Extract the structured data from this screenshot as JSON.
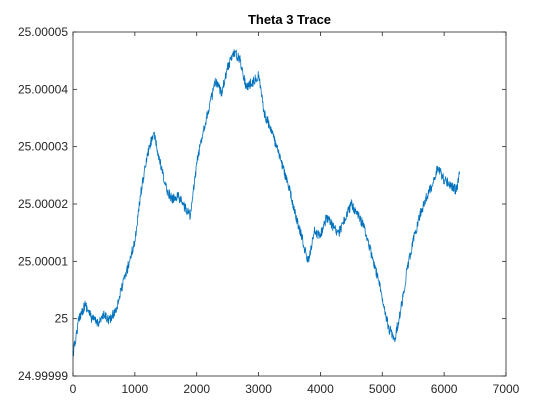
{
  "chart_data": {
    "type": "line",
    "title": "Theta 3 Trace",
    "xlabel": "",
    "ylabel": "",
    "xlim": [
      0,
      7000
    ],
    "ylim": [
      24.99999,
      25.00005
    ],
    "x_ticks": [
      0,
      1000,
      2000,
      3000,
      4000,
      5000,
      6000,
      7000
    ],
    "x_tick_labels": [
      "0",
      "1000",
      "2000",
      "3000",
      "4000",
      "5000",
      "6000",
      "7000"
    ],
    "y_ticks": [
      24.99999,
      25.0,
      25.00001,
      25.00002,
      25.00003,
      25.00004,
      25.00005
    ],
    "y_tick_labels": [
      "24.99999",
      "25",
      "25.00001",
      "25.00002",
      "25.00003",
      "25.00004",
      "25.00005"
    ],
    "grid": false,
    "colors": {
      "series": "#0072BD",
      "axis": "#262626"
    },
    "series": [
      {
        "x": [
          0,
          100,
          200,
          300,
          400,
          500,
          600,
          700,
          800,
          900,
          1000,
          1100,
          1200,
          1300,
          1400,
          1500,
          1600,
          1700,
          1800,
          1900,
          2000,
          2100,
          2200,
          2300,
          2400,
          2500,
          2600,
          2700,
          2800,
          2900,
          3000,
          3100,
          3200,
          3300,
          3400,
          3500,
          3600,
          3700,
          3800,
          3900,
          4000,
          4100,
          4200,
          4300,
          4400,
          4500,
          4600,
          4700,
          4800,
          4900,
          5000,
          5100,
          5200,
          5300,
          5400,
          5500,
          5600,
          5700,
          5800,
          5900,
          6000,
          6100,
          6200,
          6250
        ],
        "y": [
          24.9999937,
          25.0000002,
          25.0000025,
          25.0000001,
          24.9999993,
          25.0000005,
          24.9999997,
          25.0000018,
          25.0000058,
          25.0000095,
          25.0000135,
          25.0000222,
          25.0000283,
          25.0000325,
          25.0000275,
          25.0000229,
          25.0000208,
          25.0000215,
          25.0000195,
          25.000018,
          25.000027,
          25.0000326,
          25.0000368,
          25.0000412,
          25.0000395,
          25.0000438,
          25.0000465,
          25.0000452,
          25.0000404,
          25.0000412,
          25.0000425,
          25.0000355,
          25.0000332,
          25.0000295,
          25.0000262,
          25.0000225,
          25.0000178,
          25.0000142,
          25.0000098,
          25.0000152,
          25.0000145,
          25.0000178,
          25.000016,
          25.000015,
          25.0000175,
          25.00002,
          25.0000182,
          25.0000162,
          25.0000122,
          25.0000082,
          25.0000038,
          24.9999985,
          24.9999965,
          25.0000015,
          25.0000085,
          25.0000135,
          25.0000178,
          25.0000208,
          25.0000232,
          25.0000265,
          25.0000242,
          25.0000234,
          25.0000224,
          25.0000252
        ]
      }
    ]
  }
}
